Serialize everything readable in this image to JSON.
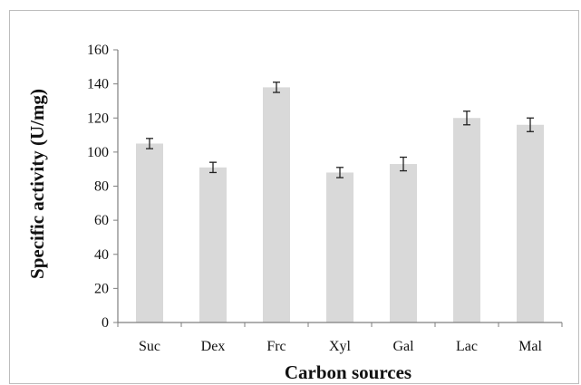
{
  "chart_data": {
    "type": "bar",
    "categories": [
      "Suc",
      "Dex",
      "Frc",
      "Xyl",
      "Gal",
      "Lac",
      "Mal"
    ],
    "series": [
      {
        "values": [
          105,
          91,
          138,
          88,
          93,
          120,
          116
        ],
        "error": [
          3,
          3,
          3,
          3,
          4,
          4,
          4
        ]
      }
    ],
    "title": "",
    "xlabel": "Carbon sources",
    "ylabel": "Specific activity (U/mg)",
    "ylim": [
      0,
      160
    ],
    "yticks": [
      0,
      20,
      40,
      60,
      80,
      100,
      120,
      140,
      160
    ],
    "grid": false,
    "legend": "none",
    "colors": {
      "bar": "#d9d9d9",
      "axis": "#7f7f7f",
      "error_bar": "#222222",
      "frame": "#bdbdbd"
    }
  }
}
